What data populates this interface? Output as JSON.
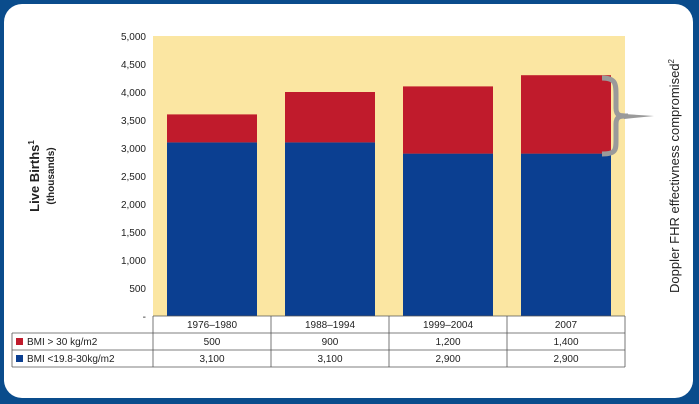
{
  "chart_data": {
    "type": "bar",
    "stacked": true,
    "categories": [
      "1976–1980",
      "1988–1994",
      "1999–2004",
      "2007"
    ],
    "series": [
      {
        "name": "BMI <19.8-30kg/m2",
        "values": [
          3100,
          3100,
          2900,
          2900
        ],
        "value_labels": [
          "3,100",
          "3,100",
          "2,900",
          "2,900"
        ],
        "color": "#0b3f91"
      },
      {
        "name": "BMI > 30 kg/m2",
        "values": [
          500,
          900,
          1200,
          1400
        ],
        "value_labels": [
          "500",
          "900",
          "1,200",
          "1,400"
        ],
        "color": "#c01b2c"
      }
    ],
    "ylim": [
      0,
      5000
    ],
    "yticks": [
      0,
      500,
      1000,
      1500,
      2000,
      2500,
      3000,
      3500,
      4000,
      4500,
      5000
    ],
    "ytick_labels": [
      "-",
      "500",
      "1,000",
      "1,500",
      "2,000",
      "2,500",
      "3,000",
      "3,500",
      "4,000",
      "4,500",
      "5,000"
    ],
    "ylabel": "Live Births",
    "ylabel_superscript": "1",
    "ylabel_sub": "(thousands)",
    "right_annotation": "Doppler FHR effectivness compromised",
    "right_annotation_superscript": "2",
    "plot_background": "#fbe6a2",
    "legend_placement": "data-table-below"
  }
}
